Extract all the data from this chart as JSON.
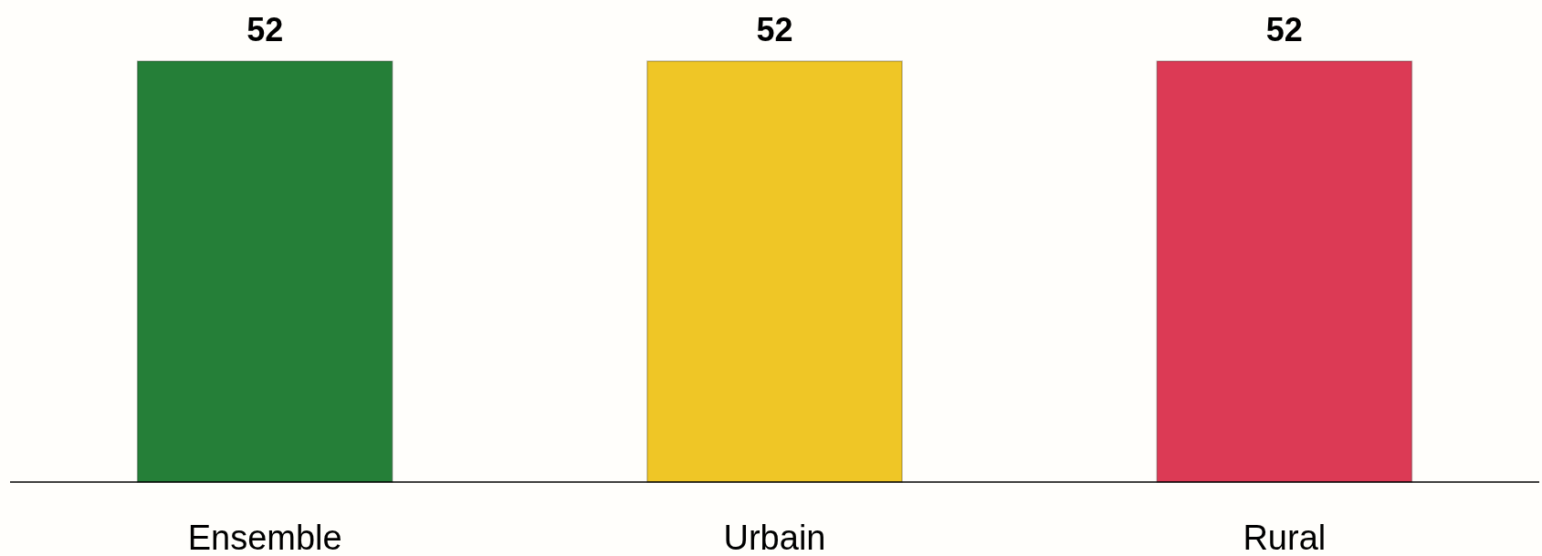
{
  "chart_data": {
    "type": "bar",
    "categories": [
      "Ensemble",
      "Urbain",
      "Rural"
    ],
    "values": [
      52,
      52,
      52
    ],
    "colors": [
      "#257f38",
      "#efc626",
      "#dc3a55"
    ],
    "data_labels": true
  }
}
